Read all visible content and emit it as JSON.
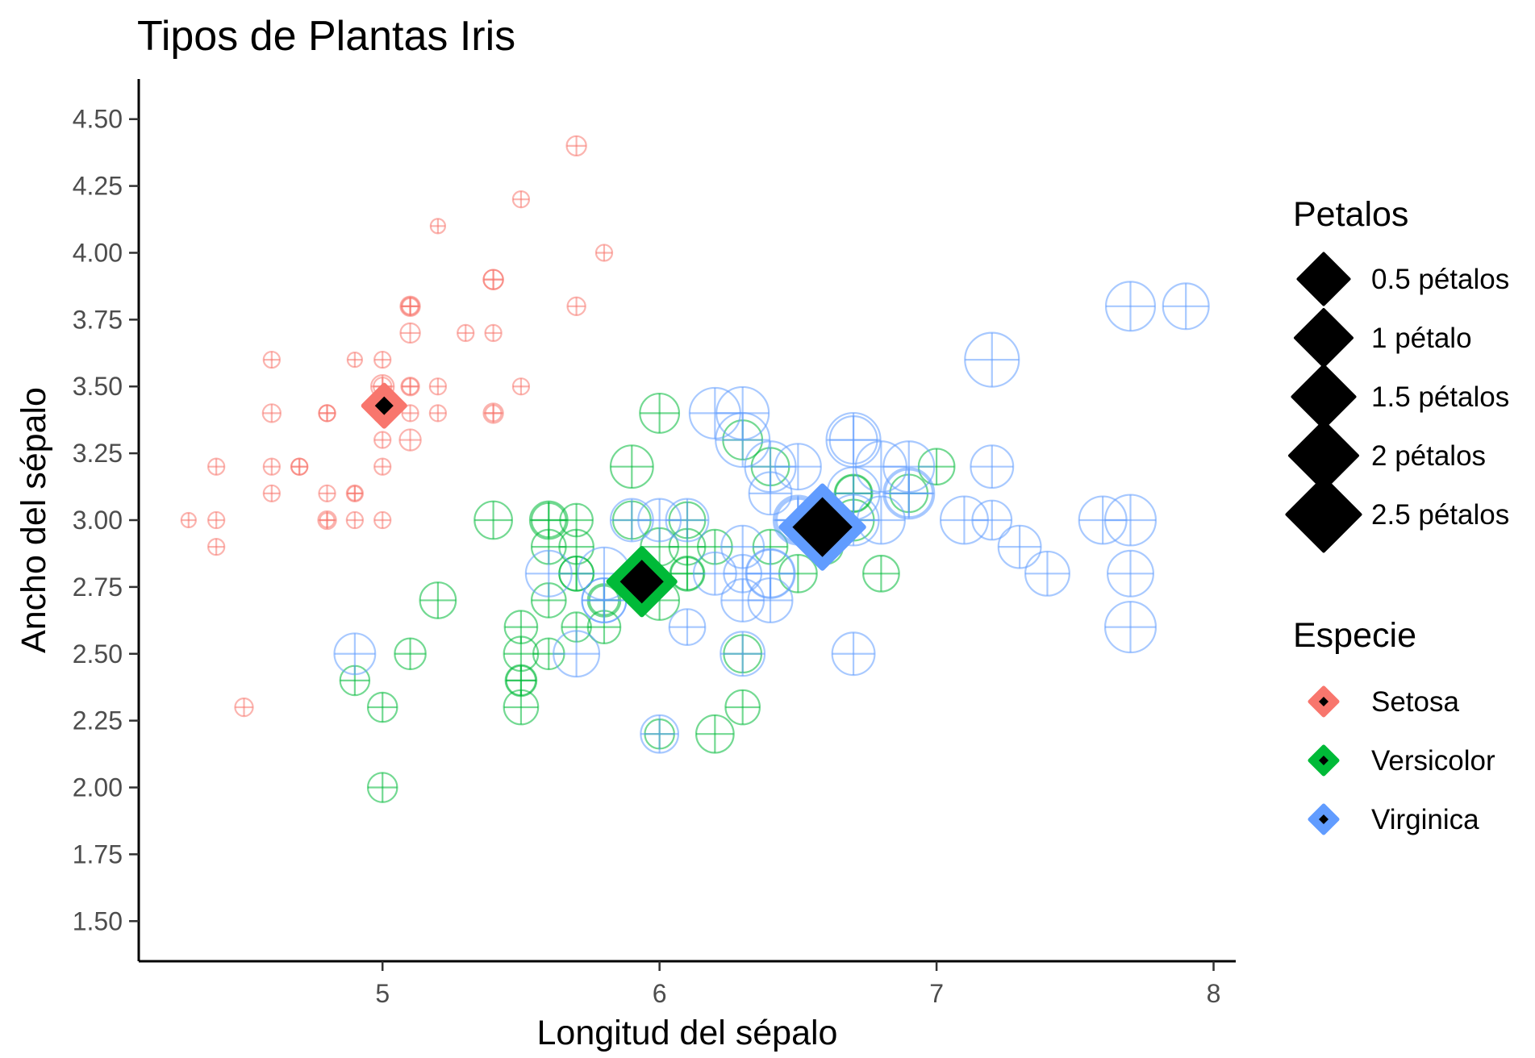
{
  "chart_data": {
    "type": "scatter",
    "title": "Tipos de Plantas Iris",
    "xlabel": "Longitud del sépalo",
    "ylabel": "Ancho del sépalo",
    "xlim": [
      4.12,
      8.08
    ],
    "ylim": [
      1.35,
      4.65
    ],
    "x_ticks": [
      5,
      6,
      7,
      8
    ],
    "x_tick_labels": [
      "5",
      "6",
      "7",
      "8"
    ],
    "y_ticks": [
      1.5,
      1.75,
      2.0,
      2.25,
      2.5,
      2.75,
      3.0,
      3.25,
      3.5,
      3.75,
      4.0,
      4.25,
      4.5
    ],
    "y_tick_labels": [
      "1.50",
      "1.75",
      "2.00",
      "2.25",
      "2.50",
      "2.75",
      "3.00",
      "3.25",
      "3.50",
      "3.75",
      "4.00",
      "4.25",
      "4.50"
    ],
    "grid": false,
    "legend_position": "right",
    "point_shape": "circle-plus",
    "centroid_shape": "diamond",
    "size_legend": {
      "title": "Petalos",
      "entries": [
        {
          "label": "0.5 pétalos",
          "value": 0.5
        },
        {
          "label": "1 pétalo",
          "value": 1.0
        },
        {
          "label": "1.5 pétalos",
          "value": 1.5
        },
        {
          "label": "2 pétalos",
          "value": 2.0
        },
        {
          "label": "2.5 pétalos",
          "value": 2.5
        }
      ]
    },
    "color_legend": {
      "title": "Especie",
      "entries": [
        {
          "label": "Setosa",
          "color": "#F8766D"
        },
        {
          "label": "Versicolor",
          "color": "#00BA38"
        },
        {
          "label": "Virginica",
          "color": "#619CFF"
        }
      ]
    },
    "series": [
      {
        "name": "Setosa",
        "color": "#F8766D",
        "centroid": [
          5.006,
          3.428,
          0.246
        ],
        "points": [
          [
            5.1,
            3.5,
            0.2
          ],
          [
            4.9,
            3.0,
            0.2
          ],
          [
            4.7,
            3.2,
            0.2
          ],
          [
            4.6,
            3.1,
            0.2
          ],
          [
            5.0,
            3.6,
            0.2
          ],
          [
            5.4,
            3.9,
            0.4
          ],
          [
            4.6,
            3.4,
            0.3
          ],
          [
            5.0,
            3.4,
            0.2
          ],
          [
            4.4,
            2.9,
            0.2
          ],
          [
            4.9,
            3.1,
            0.1
          ],
          [
            5.4,
            3.7,
            0.2
          ],
          [
            4.8,
            3.4,
            0.2
          ],
          [
            4.8,
            3.0,
            0.1
          ],
          [
            4.3,
            3.0,
            0.1
          ],
          [
            5.8,
            4.0,
            0.2
          ],
          [
            5.7,
            4.4,
            0.4
          ],
          [
            5.4,
            3.9,
            0.4
          ],
          [
            5.1,
            3.5,
            0.3
          ],
          [
            5.7,
            3.8,
            0.3
          ],
          [
            5.1,
            3.8,
            0.3
          ],
          [
            5.4,
            3.4,
            0.2
          ],
          [
            5.1,
            3.7,
            0.4
          ],
          [
            4.6,
            3.6,
            0.2
          ],
          [
            5.1,
            3.3,
            0.5
          ],
          [
            4.8,
            3.4,
            0.2
          ],
          [
            5.0,
            3.0,
            0.2
          ],
          [
            5.0,
            3.4,
            0.4
          ],
          [
            5.2,
            3.5,
            0.2
          ],
          [
            5.2,
            3.4,
            0.2
          ],
          [
            4.7,
            3.2,
            0.2
          ],
          [
            4.8,
            3.1,
            0.2
          ],
          [
            5.4,
            3.4,
            0.4
          ],
          [
            5.2,
            4.1,
            0.1
          ],
          [
            5.5,
            4.2,
            0.2
          ],
          [
            4.9,
            3.1,
            0.2
          ],
          [
            5.0,
            3.2,
            0.2
          ],
          [
            5.5,
            3.5,
            0.2
          ],
          [
            4.9,
            3.6,
            0.1
          ],
          [
            4.4,
            3.0,
            0.2
          ],
          [
            5.1,
            3.4,
            0.2
          ],
          [
            5.0,
            3.5,
            0.3
          ],
          [
            4.5,
            2.3,
            0.3
          ],
          [
            4.4,
            3.2,
            0.2
          ],
          [
            5.0,
            3.5,
            0.6
          ],
          [
            5.1,
            3.8,
            0.4
          ],
          [
            4.8,
            3.0,
            0.3
          ],
          [
            5.1,
            3.8,
            0.2
          ],
          [
            4.6,
            3.2,
            0.2
          ],
          [
            5.3,
            3.7,
            0.2
          ],
          [
            5.0,
            3.3,
            0.2
          ]
        ]
      },
      {
        "name": "Versicolor",
        "color": "#00BA38",
        "centroid": [
          5.936,
          2.77,
          1.326
        ],
        "points": [
          [
            7.0,
            3.2,
            1.4
          ],
          [
            6.4,
            3.2,
            1.5
          ],
          [
            6.9,
            3.1,
            1.5
          ],
          [
            5.5,
            2.3,
            1.3
          ],
          [
            6.5,
            2.8,
            1.5
          ],
          [
            5.7,
            2.8,
            1.3
          ],
          [
            6.3,
            3.3,
            1.6
          ],
          [
            4.9,
            2.4,
            1.0
          ],
          [
            6.6,
            2.9,
            1.3
          ],
          [
            5.2,
            2.7,
            1.4
          ],
          [
            5.0,
            2.0,
            1.0
          ],
          [
            5.9,
            3.0,
            1.5
          ],
          [
            6.0,
            2.2,
            1.0
          ],
          [
            6.1,
            2.9,
            1.4
          ],
          [
            5.6,
            2.9,
            1.3
          ],
          [
            6.7,
            3.1,
            1.4
          ],
          [
            5.6,
            3.0,
            1.5
          ],
          [
            5.8,
            2.7,
            1.0
          ],
          [
            6.2,
            2.2,
            1.5
          ],
          [
            5.6,
            2.5,
            1.1
          ],
          [
            5.9,
            3.2,
            1.8
          ],
          [
            6.1,
            2.8,
            1.3
          ],
          [
            6.3,
            2.5,
            1.5
          ],
          [
            6.1,
            2.8,
            1.2
          ],
          [
            6.4,
            2.9,
            1.3
          ],
          [
            6.6,
            3.0,
            1.4
          ],
          [
            6.8,
            2.8,
            1.4
          ],
          [
            6.7,
            3.0,
            1.7
          ],
          [
            6.0,
            2.9,
            1.5
          ],
          [
            5.7,
            2.6,
            1.0
          ],
          [
            5.5,
            2.4,
            1.1
          ],
          [
            5.5,
            2.4,
            1.0
          ],
          [
            5.8,
            2.7,
            1.2
          ],
          [
            6.0,
            2.7,
            1.6
          ],
          [
            5.4,
            3.0,
            1.5
          ],
          [
            6.0,
            3.4,
            1.6
          ],
          [
            6.7,
            3.1,
            1.5
          ],
          [
            6.3,
            2.3,
            1.3
          ],
          [
            5.6,
            3.0,
            1.3
          ],
          [
            5.5,
            2.5,
            1.3
          ],
          [
            5.5,
            2.6,
            1.2
          ],
          [
            6.1,
            3.0,
            1.4
          ],
          [
            5.8,
            2.6,
            1.2
          ],
          [
            5.0,
            2.3,
            1.0
          ],
          [
            5.6,
            2.7,
            1.3
          ],
          [
            5.7,
            3.0,
            1.2
          ],
          [
            5.7,
            2.9,
            1.3
          ],
          [
            6.2,
            2.9,
            1.3
          ],
          [
            5.1,
            2.5,
            1.1
          ],
          [
            5.7,
            2.8,
            1.3
          ]
        ]
      },
      {
        "name": "Virginica",
        "color": "#619CFF",
        "centroid": [
          6.588,
          2.974,
          2.026
        ],
        "points": [
          [
            6.3,
            3.3,
            2.5
          ],
          [
            5.8,
            2.7,
            1.9
          ],
          [
            7.1,
            3.0,
            2.1
          ],
          [
            6.3,
            2.9,
            1.8
          ],
          [
            6.5,
            3.0,
            2.2
          ],
          [
            7.6,
            3.0,
            2.1
          ],
          [
            4.9,
            2.5,
            1.7
          ],
          [
            7.3,
            2.9,
            1.8
          ],
          [
            6.7,
            2.5,
            1.8
          ],
          [
            7.2,
            3.6,
            2.5
          ],
          [
            6.5,
            3.2,
            2.0
          ],
          [
            6.4,
            2.7,
            1.9
          ],
          [
            6.8,
            3.0,
            2.1
          ],
          [
            5.7,
            2.5,
            2.0
          ],
          [
            5.8,
            2.8,
            2.4
          ],
          [
            6.4,
            3.2,
            2.3
          ],
          [
            6.5,
            3.0,
            1.8
          ],
          [
            7.7,
            3.8,
            2.2
          ],
          [
            7.7,
            2.6,
            2.3
          ],
          [
            6.0,
            2.2,
            1.5
          ],
          [
            6.9,
            3.2,
            2.3
          ],
          [
            5.6,
            2.8,
            2.0
          ],
          [
            7.7,
            2.8,
            2.0
          ],
          [
            6.3,
            2.7,
            1.8
          ],
          [
            6.7,
            3.3,
            2.1
          ],
          [
            7.2,
            3.2,
            1.8
          ],
          [
            6.2,
            2.8,
            1.8
          ],
          [
            6.1,
            3.0,
            1.8
          ],
          [
            6.4,
            2.8,
            2.1
          ],
          [
            7.2,
            3.0,
            1.6
          ],
          [
            7.4,
            2.8,
            1.9
          ],
          [
            7.9,
            3.8,
            2.0
          ],
          [
            6.4,
            2.8,
            2.2
          ],
          [
            6.3,
            2.8,
            1.5
          ],
          [
            6.1,
            2.6,
            1.4
          ],
          [
            7.7,
            3.0,
            2.3
          ],
          [
            6.3,
            3.4,
            2.4
          ],
          [
            6.4,
            3.1,
            1.8
          ],
          [
            6.0,
            3.0,
            1.8
          ],
          [
            6.9,
            3.1,
            2.1
          ],
          [
            6.7,
            3.1,
            2.4
          ],
          [
            6.9,
            3.1,
            2.3
          ],
          [
            5.8,
            2.7,
            1.9
          ],
          [
            6.8,
            3.2,
            2.3
          ],
          [
            6.7,
            3.3,
            2.5
          ],
          [
            6.7,
            3.0,
            2.3
          ],
          [
            6.3,
            2.5,
            1.9
          ],
          [
            6.5,
            3.0,
            2.0
          ],
          [
            6.2,
            3.4,
            2.3
          ],
          [
            5.9,
            3.0,
            1.8
          ]
        ]
      }
    ]
  }
}
